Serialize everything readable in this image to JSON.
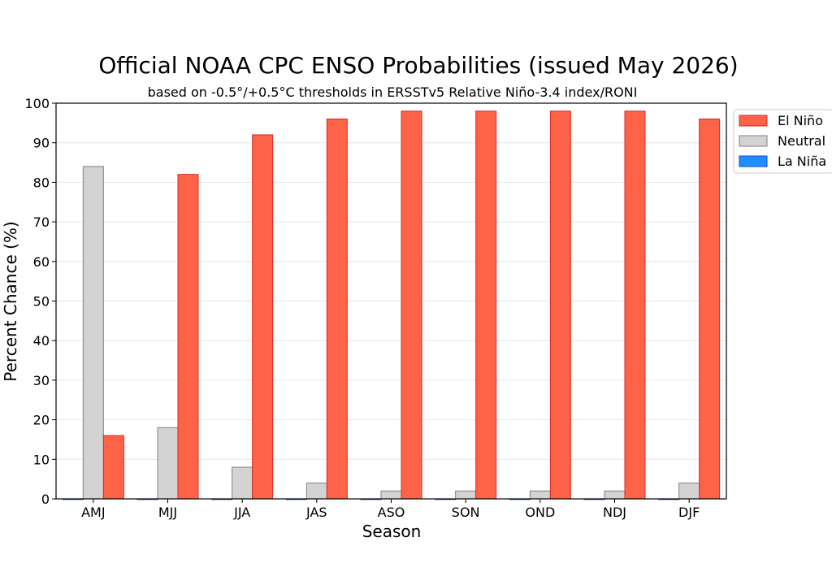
{
  "chart_data": {
    "type": "bar",
    "title": "Official NOAA CPC ENSO Probabilities (issued May 2026)",
    "subtitle": "based on -0.5°/+0.5°C thresholds in ERSSTv5 Relative Niño-3.4 index/RONI",
    "xlabel": "Season",
    "ylabel": "Percent Chance (%)",
    "ylim": [
      0,
      100
    ],
    "yticks": [
      0,
      10,
      20,
      30,
      40,
      50,
      60,
      70,
      80,
      90,
      100
    ],
    "grid": true,
    "legend_position": "top-right outside",
    "categories": [
      "AMJ",
      "MJJ",
      "JJA",
      "JAS",
      "ASO",
      "SON",
      "OND",
      "NDJ",
      "DJF"
    ],
    "series": [
      {
        "name": "La Niña",
        "color": "#1f8fff",
        "edge": "#1446c8",
        "values": [
          0,
          0,
          0,
          0,
          0,
          0,
          0,
          0,
          0
        ]
      },
      {
        "name": "Neutral",
        "color": "#d3d3d3",
        "edge": "#808080",
        "values": [
          84,
          18,
          8,
          4,
          2,
          2,
          2,
          2,
          4
        ]
      },
      {
        "name": "El Niño",
        "color": "#ff6347",
        "edge": "#d62728",
        "values": [
          16,
          82,
          92,
          96,
          98,
          98,
          98,
          98,
          96
        ]
      }
    ],
    "legend_order": [
      "El Niño",
      "Neutral",
      "La Niña"
    ]
  }
}
